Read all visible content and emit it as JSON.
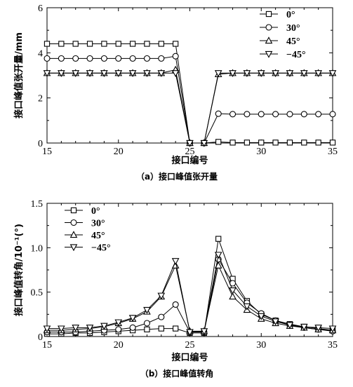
{
  "chart_data": [
    {
      "type": "line",
      "xlabel": "接口编号",
      "ylabel": "接口峰值张开量/mm",
      "caption": "（a）接口峰值张开量",
      "xlim": [
        15,
        35
      ],
      "ylim": [
        0,
        6
      ],
      "xticks": [
        "15",
        "20",
        "25",
        "30",
        "35"
      ],
      "yticks": [
        "0",
        "2",
        "4",
        "6"
      ],
      "legend_position": "top-right",
      "x": [
        15,
        16,
        17,
        18,
        19,
        20,
        21,
        22,
        23,
        24,
        25,
        26,
        27,
        28,
        29,
        30,
        31,
        32,
        33,
        34,
        35
      ],
      "series": [
        {
          "name": "0°",
          "marker": "square",
          "values": [
            4.4,
            4.4,
            4.4,
            4.4,
            4.4,
            4.4,
            4.4,
            4.4,
            4.4,
            4.4,
            0,
            0,
            0.05,
            0.02,
            0.02,
            0.02,
            0.02,
            0.02,
            0.02,
            0.02,
            0.02
          ]
        },
        {
          "name": "30°",
          "marker": "circle",
          "values": [
            3.75,
            3.75,
            3.75,
            3.75,
            3.75,
            3.75,
            3.75,
            3.75,
            3.75,
            3.85,
            0,
            0,
            1.3,
            1.28,
            1.28,
            1.28,
            1.28,
            1.28,
            1.28,
            1.28,
            1.28
          ]
        },
        {
          "name": "45°",
          "marker": "triangle-up",
          "values": [
            3.1,
            3.1,
            3.1,
            3.1,
            3.1,
            3.1,
            3.1,
            3.1,
            3.1,
            3.25,
            0,
            0,
            3.05,
            3.1,
            3.1,
            3.1,
            3.1,
            3.1,
            3.1,
            3.1,
            3.1
          ]
        },
        {
          "name": "−45°",
          "marker": "triangle-down",
          "values": [
            3.1,
            3.1,
            3.1,
            3.1,
            3.1,
            3.1,
            3.1,
            3.1,
            3.1,
            3.1,
            0,
            0,
            3.1,
            3.1,
            3.1,
            3.1,
            3.1,
            3.1,
            3.1,
            3.1,
            3.1
          ]
        }
      ]
    },
    {
      "type": "line",
      "xlabel": "接口编号",
      "ylabel": "接口峰值转角/10⁻¹(°)",
      "caption": "（b）接口峰值转角",
      "xlim": [
        15,
        35
      ],
      "ylim": [
        0,
        1.5
      ],
      "xticks": [
        "15",
        "20",
        "25",
        "30",
        "35"
      ],
      "yticks": [
        "0",
        "0.5",
        "1.0",
        "1.5"
      ],
      "legend_position": "top-left",
      "x": [
        15,
        16,
        17,
        18,
        19,
        20,
        21,
        22,
        23,
        24,
        25,
        26,
        27,
        28,
        29,
        30,
        31,
        32,
        33,
        34,
        35
      ],
      "series": [
        {
          "name": "0°",
          "marker": "square",
          "values": [
            0.03,
            0.03,
            0.04,
            0.04,
            0.05,
            0.06,
            0.07,
            0.08,
            0.09,
            0.09,
            0.04,
            0.04,
            1.1,
            0.65,
            0.4,
            0.25,
            0.18,
            0.14,
            0.11,
            0.09,
            0.07
          ]
        },
        {
          "name": "30°",
          "marker": "circle",
          "values": [
            0.05,
            0.05,
            0.05,
            0.06,
            0.07,
            0.08,
            0.1,
            0.15,
            0.22,
            0.36,
            0.05,
            0.05,
            0.87,
            0.6,
            0.38,
            0.26,
            0.18,
            0.13,
            0.1,
            0.08,
            0.06
          ]
        },
        {
          "name": "45°",
          "marker": "triangle-up",
          "values": [
            0.07,
            0.07,
            0.08,
            0.09,
            0.11,
            0.15,
            0.2,
            0.28,
            0.45,
            0.8,
            0.06,
            0.06,
            0.8,
            0.45,
            0.3,
            0.2,
            0.15,
            0.12,
            0.1,
            0.08,
            0.07
          ]
        },
        {
          "name": "−45°",
          "marker": "triangle-down",
          "values": [
            0.09,
            0.09,
            0.1,
            0.1,
            0.12,
            0.16,
            0.21,
            0.3,
            0.46,
            0.85,
            0.05,
            0.06,
            0.92,
            0.52,
            0.34,
            0.23,
            0.17,
            0.13,
            0.11,
            0.1,
            0.09
          ]
        }
      ]
    }
  ]
}
